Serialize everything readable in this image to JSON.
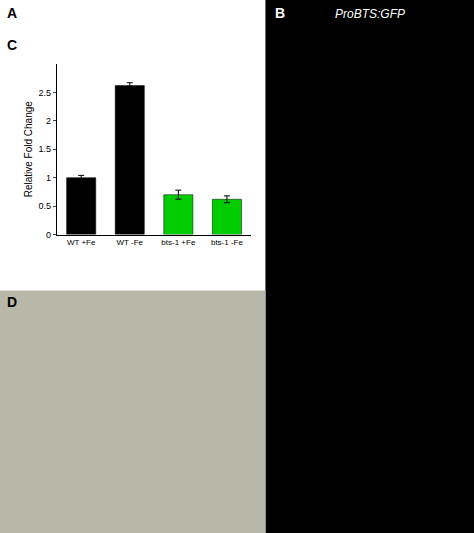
{
  "chart_data": {
    "type": "bar",
    "categories": [
      "WT +Fe",
      "WT -Fe",
      "bts-1 +Fe",
      "bts-1 -Fe"
    ],
    "values": [
      1.0,
      2.62,
      0.7,
      0.62
    ],
    "errors": [
      0.04,
      0.05,
      0.08,
      0.06
    ],
    "colors": [
      "#000000",
      "#000000",
      "#00cc00",
      "#00cc00"
    ],
    "ylabel": "Relative Fold Change",
    "ylim": [
      0,
      3.0
    ],
    "yticks": [
      0,
      0.5,
      1,
      1.5,
      2,
      2.5
    ],
    "grid": false,
    "annotations": [
      "A",
      "B",
      "C",
      "D",
      "ProBTS:GFP"
    ]
  }
}
